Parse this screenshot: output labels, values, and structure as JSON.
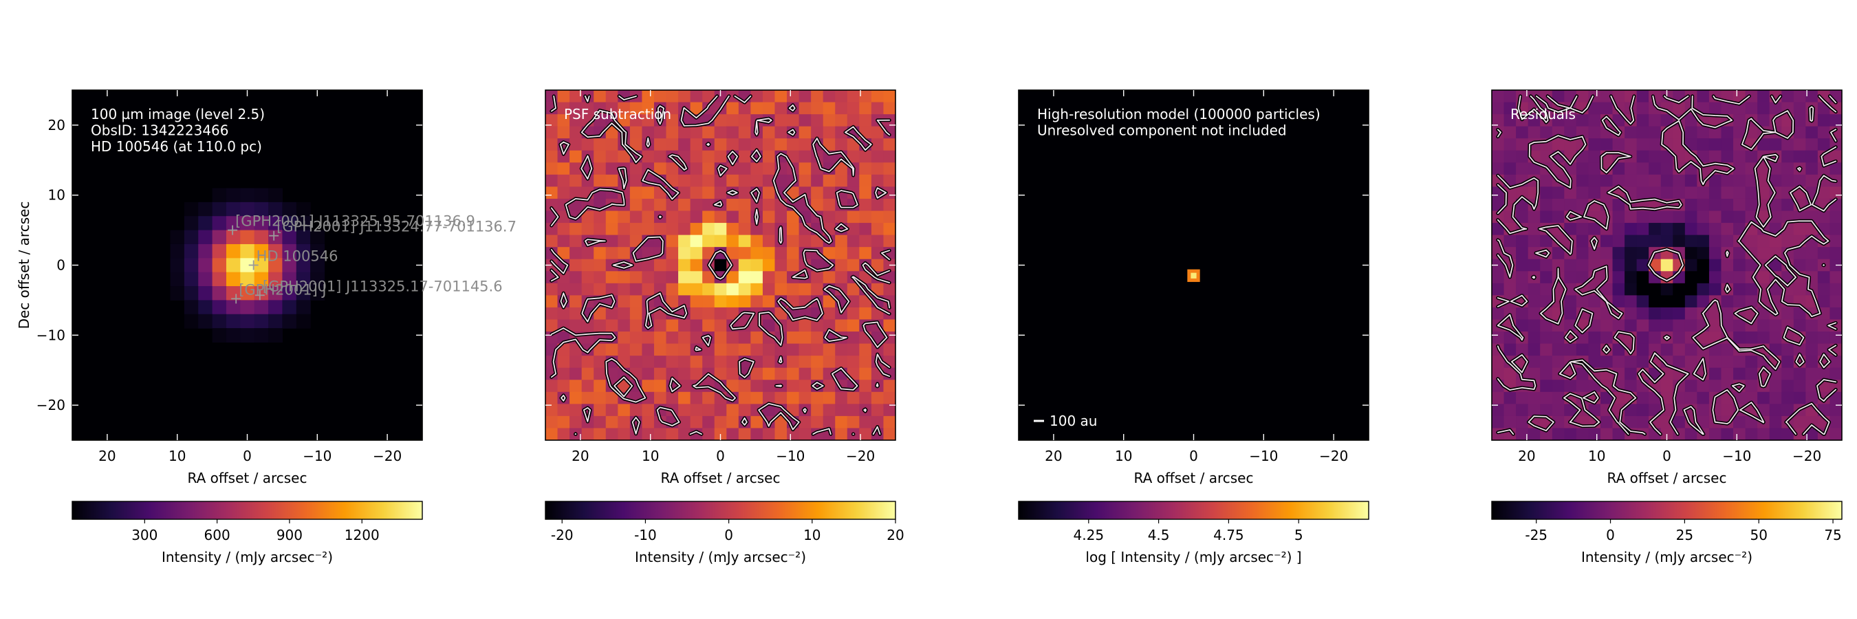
{
  "colors": {
    "background": "#ffffff",
    "colormap": [
      "#000004",
      "#1b0c41",
      "#4a0c6b",
      "#781c6d",
      "#a52c60",
      "#cf4446",
      "#ed6925",
      "#fb9b06",
      "#f7d13d",
      "#fcffa4"
    ],
    "contour_dark": "#000000",
    "contour_light": "#f2e6ee",
    "marker": "#9a9a9a",
    "annotation_text": "#ffffff",
    "source_label_text": "#8c8c8c"
  },
  "chart_data": [
    {
      "type": "heatmap",
      "panel_id": "observed",
      "colormap": "inferno",
      "annotation_lines": [
        "100 µm image (level 2.5)",
        "ObsID: 1342223466",
        "HD 100546 (at 110.0 pc)"
      ],
      "xlabel": "RA offset / arcsec",
      "ylabel": "Dec offset / arcsec",
      "xlim": [
        25,
        -25
      ],
      "ylim": [
        -25,
        25
      ],
      "xticks": [
        "20",
        "10",
        "0",
        "−10",
        "−20"
      ],
      "yticks": [
        "20",
        "10",
        "0",
        "−10",
        "−20"
      ],
      "image_model": {
        "kind": "point_source",
        "peak": 1450,
        "fwhm_arcsec": 9.0
      },
      "sources": [
        {
          "label": "[GPH2001] J113325.95-701136.9",
          "ra_offset": 2.1,
          "dec_offset": 5.0
        },
        {
          "label": "[GPH2001] J113324.77-701136.7",
          "ra_offset": -3.8,
          "dec_offset": 4.2
        },
        {
          "label": "HD 100546",
          "ra_offset": -0.9,
          "dec_offset": 0.0
        },
        {
          "label": "[GPH2001] J113325.17-701145.6",
          "ra_offset": -1.8,
          "dec_offset": -4.3
        },
        {
          "label": "[GPH2001] J",
          "ra_offset": 1.6,
          "dec_offset": -4.8
        }
      ],
      "colorbar": {
        "label": "Intensity / (mJy arcsec⁻²)",
        "range": [
          0,
          1450
        ],
        "ticks": [
          "300",
          "600",
          "900",
          "1200"
        ]
      }
    },
    {
      "type": "heatmap",
      "panel_id": "psf-subtraction",
      "colormap": "inferno",
      "annotation_lines": [
        "PSF subtraction"
      ],
      "xlabel": "RA offset / arcsec",
      "xlim": [
        25,
        -25
      ],
      "ylim": [
        -25,
        25
      ],
      "xticks": [
        "20",
        "10",
        "0",
        "−10",
        "−20"
      ],
      "image_model": {
        "kind": "residual_noise",
        "center_value": -20,
        "ring_value": 18,
        "noise_amplitude": 6,
        "range": [
          -22,
          20
        ]
      },
      "contour_levels": [
        -3
      ],
      "colorbar": {
        "label": "Intensity / (mJy arcsec⁻²)",
        "range": [
          -22,
          20
        ],
        "ticks": [
          "-20",
          "-10",
          "0",
          "10",
          "20"
        ]
      }
    },
    {
      "type": "heatmap",
      "panel_id": "model",
      "colormap": "inferno",
      "annotation_lines": [
        "High-resolution model (100000 particles)",
        "Unresolved component not included"
      ],
      "scale_bar_label": "100 au",
      "xlabel": "RA offset / arcsec",
      "xlim": [
        25,
        -25
      ],
      "ylim": [
        -25,
        25
      ],
      "xticks": [
        "20",
        "10",
        "0",
        "−10",
        "−20"
      ],
      "image_model": {
        "kind": "compact",
        "ra_offset": 0.0,
        "dec_offset": -1.5,
        "size_arcsec": 0.9
      },
      "colorbar": {
        "label": "log [ Intensity / (mJy arcsec⁻²) ]",
        "range": [
          4.0,
          5.25
        ],
        "ticks": [
          "4.25",
          "4.5",
          "4.75",
          "5"
        ]
      }
    },
    {
      "type": "heatmap",
      "panel_id": "residuals",
      "colormap": "inferno",
      "annotation_lines": [
        "Residuals"
      ],
      "xlabel": "RA offset / arcsec",
      "xlim": [
        25,
        -25
      ],
      "ylim": [
        -25,
        25
      ],
      "xticks": [
        "20",
        "10",
        "0",
        "−10",
        "−20"
      ],
      "image_model": {
        "kind": "residual_ring",
        "center_value": 78,
        "ring_value": -40,
        "noise_amplitude": 8,
        "range": [
          -40,
          78
        ]
      },
      "contour_levels": [
        3
      ],
      "colorbar": {
        "label": "Intensity / (mJy arcsec⁻²)",
        "range": [
          -40,
          78
        ],
        "ticks": [
          "-25",
          "0",
          "25",
          "50",
          "75"
        ]
      }
    }
  ]
}
